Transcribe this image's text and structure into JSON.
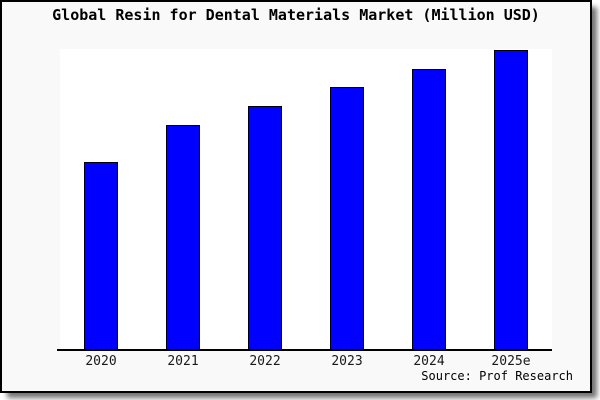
{
  "title": "Global Resin for Dental Materials Market (Million USD)",
  "source_note": "Source: Prof Research",
  "colors": {
    "canvas_background": "#f9f9f9",
    "plot_background": "#ffffff",
    "bar_fill": "#0000ff",
    "bar_border": "#000000",
    "axis_line": "#000000",
    "frame_border": "#000000",
    "title_text": "#000000",
    "tick_label_text": "#1a1a1a"
  },
  "chart_data": {
    "type": "bar",
    "title": "Global Resin for Dental Materials Market (Million USD)",
    "categories": [
      "2020",
      "2021",
      "2022",
      "2023",
      "2024",
      "2025e"
    ],
    "values": [
      188,
      225,
      244,
      263,
      281,
      300
    ],
    "value_unit": "relative bar height in screen pixels (no numeric y-axis shown on chart)",
    "series_name": "Global Resin for Dental Materials Market (Million USD)",
    "xlabel": "",
    "ylabel": "",
    "y_axis_visible": false,
    "x_axis_visible": true,
    "gridlines": false,
    "legend_position": "none",
    "data_labels": false,
    "annotation": "Source: Prof Research",
    "bar_color": "#0000ff",
    "bar_border_color": "#000000"
  }
}
